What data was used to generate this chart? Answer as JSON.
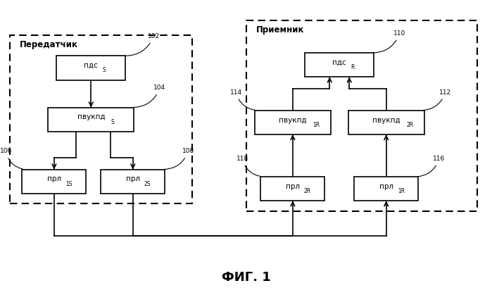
{
  "title": "ФИГ. 1",
  "transmitter_label": "Передатчик",
  "receiver_label": "Приемник",
  "background": "#ffffff"
}
